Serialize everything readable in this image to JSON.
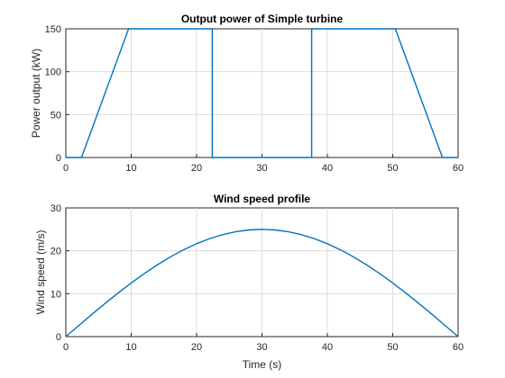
{
  "chart_data": [
    {
      "type": "line",
      "title": "Output power of Simple turbine",
      "xlabel": "",
      "ylabel": "Power output (kW)",
      "xlim": [
        0,
        60
      ],
      "ylim": [
        0,
        150
      ],
      "xticks": [
        0,
        10,
        20,
        30,
        40,
        50,
        60
      ],
      "yticks": [
        0,
        50,
        100,
        150
      ],
      "grid": true,
      "x": [
        0,
        2.4,
        9.6,
        22.4,
        22.4,
        37.6,
        37.6,
        50.4,
        57.6,
        60
      ],
      "y": [
        0,
        0,
        150,
        150,
        0,
        0,
        150,
        150,
        0,
        0
      ]
    },
    {
      "type": "line",
      "title": "Wind speed profile",
      "xlabel": "Time (s)",
      "ylabel": "Wind speed (m/s)",
      "xlim": [
        0,
        60
      ],
      "ylim": [
        0,
        30
      ],
      "xticks": [
        0,
        10,
        20,
        30,
        40,
        50,
        60
      ],
      "yticks": [
        0,
        10,
        20,
        30
      ],
      "grid": true,
      "x": [
        0,
        2,
        4,
        6,
        8,
        10,
        12,
        14,
        16,
        18,
        20,
        22,
        24,
        26,
        28,
        30,
        32,
        34,
        36,
        38,
        40,
        42,
        44,
        46,
        48,
        50,
        52,
        54,
        56,
        58,
        60
      ],
      "y": [
        0,
        2.6,
        5.2,
        7.73,
        10.17,
        12.5,
        14.69,
        16.73,
        18.58,
        20.23,
        21.65,
        22.84,
        23.78,
        24.45,
        24.86,
        25,
        24.86,
        24.45,
        23.78,
        22.84,
        21.65,
        20.23,
        18.58,
        16.73,
        14.69,
        12.5,
        10.17,
        7.73,
        5.2,
        2.6,
        0
      ]
    }
  ]
}
